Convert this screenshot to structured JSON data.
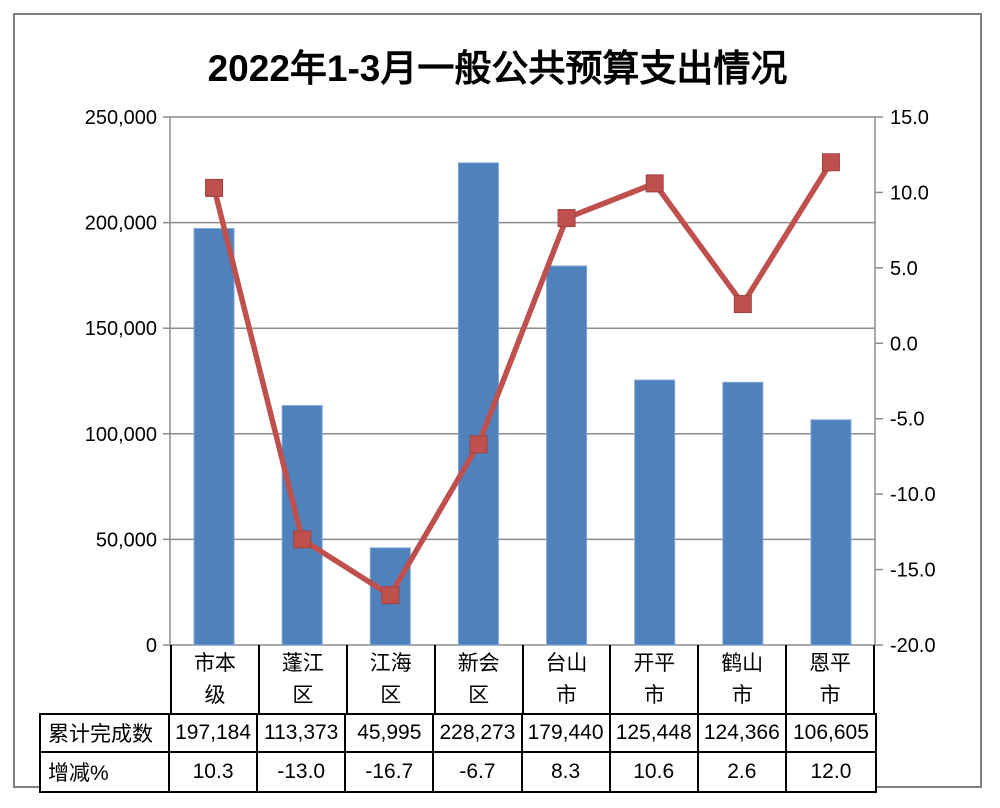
{
  "chart_data": {
    "type": "combo-bar-line",
    "title": "2022年1-3月一般公共预算支出情况",
    "categories": [
      "市本级",
      "蓬江区",
      "江海区",
      "新会区",
      "台山市",
      "开平市",
      "鹤山市",
      "恩平市"
    ],
    "series": [
      {
        "name": "累计完成数",
        "type": "bar",
        "axis": "left",
        "color": "#4F81BD",
        "values": [
          197184,
          113373,
          45995,
          228273,
          179440,
          125448,
          124366,
          106605
        ]
      },
      {
        "name": "增减%",
        "type": "line",
        "axis": "right",
        "color": "#C0504D",
        "marker": "square",
        "values": [
          10.3,
          -13.0,
          -16.7,
          -6.7,
          8.3,
          10.6,
          2.6,
          12.0
        ]
      }
    ],
    "y_left": {
      "min": 0,
      "max": 250000,
      "step": 50000,
      "tick_labels": [
        "0",
        "50,000",
        "100,000",
        "150,000",
        "200,000",
        "250,000"
      ]
    },
    "y_right": {
      "min": -20,
      "max": 15,
      "step": 5,
      "tick_labels": [
        "-20.0",
        "-15.0",
        "-10.0",
        "-5.0",
        "0.0",
        "5.0",
        "10.0",
        "15.0"
      ]
    },
    "grid": true,
    "legend": "none",
    "data_table": {
      "rows": [
        {
          "label": "累计完成数",
          "values": [
            "197,184",
            "113,373",
            "45,995",
            "228,273",
            "179,440",
            "125,448",
            "124,366",
            "106,605"
          ]
        },
        {
          "label": "增减%",
          "values": [
            "10.3",
            "-13.0",
            "-16.7",
            "-6.7",
            "8.3",
            "10.6",
            "2.6",
            "12.0"
          ]
        }
      ]
    },
    "colors": {
      "bar_fill": "#4F81BD",
      "bar_edge": "#7FA5D6",
      "line": "#C0504D",
      "marker_fill": "#C0504D",
      "marker_edge": "#A0413F",
      "gridline": "#8C8C8C",
      "axis": "#8C8C8C",
      "outer_border": "#808080",
      "table_border": "#000000"
    }
  }
}
